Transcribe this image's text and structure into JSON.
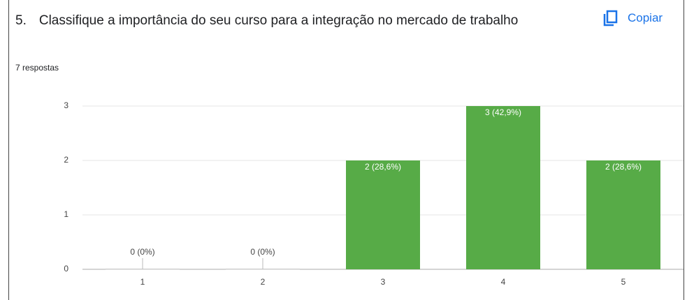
{
  "question_number": "5.",
  "copy_button": "Copiar",
  "chart_data": {
    "type": "bar",
    "title": "Classifique a importância do seu curso para a integração no mercado de trabalho",
    "subtitle": "7 respostas",
    "categories": [
      "1",
      "2",
      "3",
      "4",
      "5"
    ],
    "values": [
      0,
      0,
      2,
      3,
      2
    ],
    "value_labels": [
      "0 (0%)",
      "0 (0%)",
      "2 (28,6%)",
      "3 (42,9%)",
      "2 (28,6%)"
    ],
    "color": "#57ab47",
    "ylim": [
      0,
      3
    ],
    "yticks": [
      0,
      1,
      2,
      3
    ],
    "grid": true
  }
}
